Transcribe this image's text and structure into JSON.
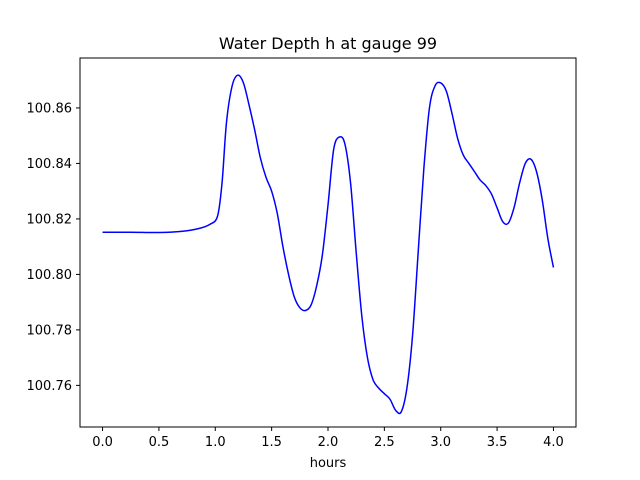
{
  "chart_data": {
    "type": "line",
    "title": "Water Depth h at gauge 99",
    "xlabel": "hours",
    "ylabel": "",
    "xlim": [
      -0.2,
      4.2
    ],
    "ylim": [
      100.745,
      100.878
    ],
    "grid": false,
    "x_ticks": [
      0.0,
      0.5,
      1.0,
      1.5,
      2.0,
      2.5,
      3.0,
      3.5,
      4.0
    ],
    "x_tick_labels": [
      "0.0",
      "0.5",
      "1.0",
      "1.5",
      "2.0",
      "2.5",
      "3.0",
      "3.5",
      "4.0"
    ],
    "y_ticks": [
      100.76,
      100.78,
      100.8,
      100.82,
      100.84,
      100.86
    ],
    "y_tick_labels": [
      "100.76",
      "100.78",
      "100.80",
      "100.82",
      "100.84",
      "100.86"
    ],
    "series": [
      {
        "color": "#0000ff",
        "points": [
          [
            0.0,
            100.8152
          ],
          [
            0.25,
            100.8152
          ],
          [
            0.5,
            100.8151
          ],
          [
            0.7,
            100.8155
          ],
          [
            0.85,
            100.8165
          ],
          [
            0.95,
            100.818
          ],
          [
            1.02,
            100.821
          ],
          [
            1.06,
            100.833
          ],
          [
            1.1,
            100.855
          ],
          [
            1.15,
            100.868
          ],
          [
            1.2,
            100.8718
          ],
          [
            1.25,
            100.869
          ],
          [
            1.3,
            100.861
          ],
          [
            1.35,
            100.852
          ],
          [
            1.4,
            100.842
          ],
          [
            1.45,
            100.835
          ],
          [
            1.5,
            100.83
          ],
          [
            1.55,
            100.822
          ],
          [
            1.6,
            100.81
          ],
          [
            1.65,
            100.8
          ],
          [
            1.7,
            100.792
          ],
          [
            1.75,
            100.788
          ],
          [
            1.8,
            100.787
          ],
          [
            1.85,
            100.789
          ],
          [
            1.9,
            100.796
          ],
          [
            1.95,
            100.807
          ],
          [
            2.0,
            100.825
          ],
          [
            2.05,
            100.845
          ],
          [
            2.1,
            100.8495
          ],
          [
            2.15,
            100.847
          ],
          [
            2.2,
            100.833
          ],
          [
            2.25,
            100.808
          ],
          [
            2.3,
            100.785
          ],
          [
            2.35,
            100.77
          ],
          [
            2.4,
            100.762
          ],
          [
            2.45,
            100.759
          ],
          [
            2.5,
            100.757
          ],
          [
            2.55,
            100.755
          ],
          [
            2.6,
            100.751
          ],
          [
            2.65,
            100.7505
          ],
          [
            2.7,
            100.759
          ],
          [
            2.75,
            100.778
          ],
          [
            2.8,
            100.808
          ],
          [
            2.85,
            100.838
          ],
          [
            2.9,
            100.86
          ],
          [
            2.95,
            100.868
          ],
          [
            3.0,
            100.869
          ],
          [
            3.05,
            100.866
          ],
          [
            3.1,
            100.858
          ],
          [
            3.15,
            100.849
          ],
          [
            3.2,
            100.843
          ],
          [
            3.25,
            100.84
          ],
          [
            3.3,
            100.837
          ],
          [
            3.35,
            100.834
          ],
          [
            3.4,
            100.832
          ],
          [
            3.45,
            100.829
          ],
          [
            3.5,
            100.824
          ],
          [
            3.55,
            100.819
          ],
          [
            3.6,
            100.8185
          ],
          [
            3.65,
            100.824
          ],
          [
            3.7,
            100.833
          ],
          [
            3.75,
            100.84
          ],
          [
            3.8,
            100.8415
          ],
          [
            3.85,
            100.837
          ],
          [
            3.9,
            100.827
          ],
          [
            3.95,
            100.813
          ],
          [
            4.0,
            100.8025
          ]
        ]
      }
    ]
  }
}
